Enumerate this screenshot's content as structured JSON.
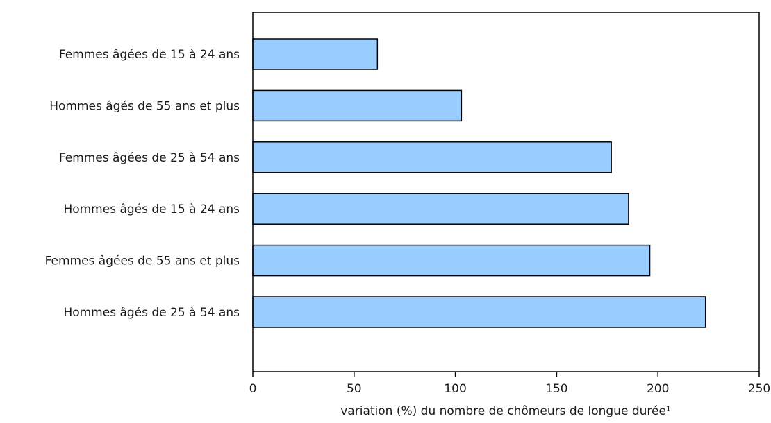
{
  "chart_data": {
    "type": "bar",
    "orientation": "horizontal",
    "categories": [
      "Femmes âgées de 15 à 24 ans",
      "Hommes âgés de 55 ans et plus",
      "Femmes âgées de 25 à 54 ans",
      "Hommes âgés de 15 à 24 ans",
      "Femmes âgées de 55 ans et plus",
      "Hommes âgés de 25 à 54 ans"
    ],
    "values": [
      61.5,
      103,
      177,
      185.5,
      196,
      223.5
    ],
    "xlabel": "variation (%) du nombre de chômeurs de longue durée¹",
    "ylabel": "",
    "xlim": [
      0,
      250
    ],
    "xticks": [
      0,
      50,
      100,
      150,
      200,
      250
    ],
    "xtick_labels": [
      "0",
      "50",
      "100",
      "150",
      "200",
      "250"
    ],
    "grid": false,
    "legend": "none",
    "colors": {
      "bar_fill": "#99ccff",
      "bar_stroke": "#000000",
      "axis": "#000000"
    }
  }
}
